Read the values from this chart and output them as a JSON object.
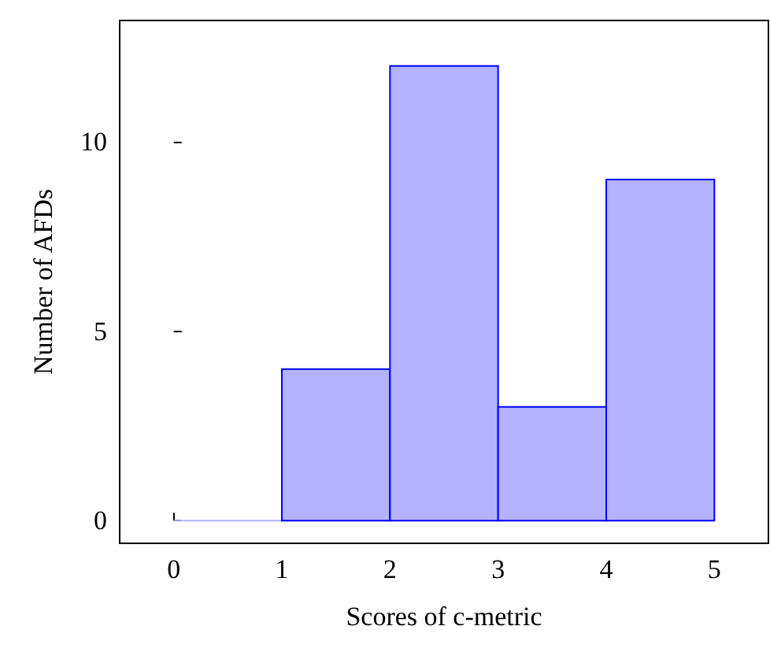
{
  "chart_data": {
    "type": "histogram",
    "xlabel": "Scores of c-metric",
    "ylabel": "Number of AFDs",
    "bins": [
      0,
      1,
      2,
      3,
      4,
      5
    ],
    "values": [
      0,
      4,
      12,
      3,
      9
    ],
    "color": "#b3b3ff",
    "xlim": [
      -0.5,
      5.5
    ],
    "xticks": [
      0,
      1,
      2,
      3,
      4,
      5
    ],
    "ylim": [
      -0.6,
      13.2
    ],
    "yticks": [
      0,
      5,
      10
    ],
    "grid": false
  }
}
